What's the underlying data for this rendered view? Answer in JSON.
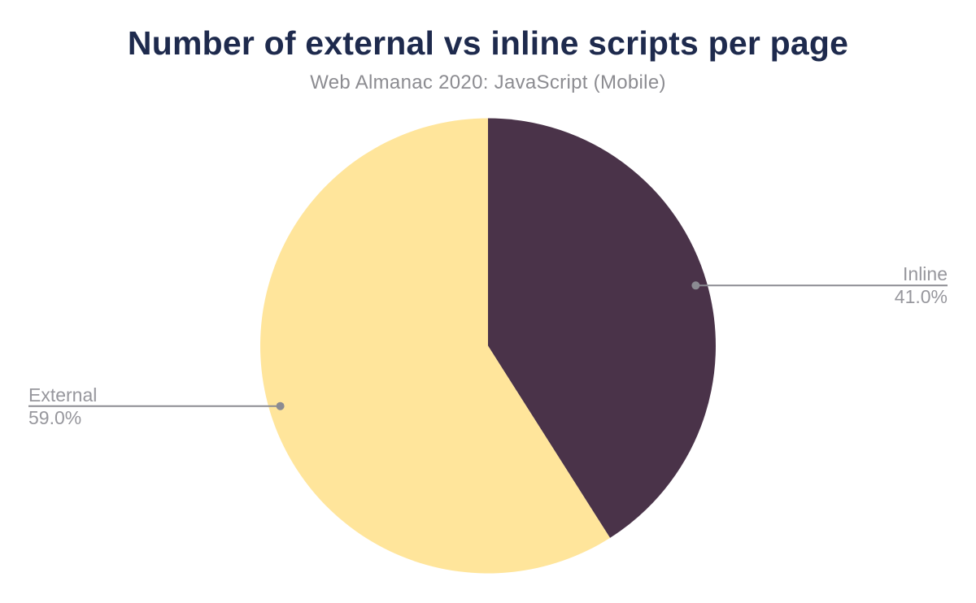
{
  "header": {
    "title": "Number of external vs inline scripts per page",
    "subtitle": "Web Almanac 2020: JavaScript (Mobile)"
  },
  "chart_data": {
    "type": "pie",
    "title": "Number of external vs inline scripts per page",
    "subtitle": "Web Almanac 2020: JavaScript (Mobile)",
    "unit": "%",
    "start_angle": "12 o'clock",
    "direction": "clockwise",
    "legend_position": "outside-callouts",
    "slices": [
      {
        "label": "Inline",
        "value": 41.0,
        "display": "41.0%",
        "color": "#4a3349",
        "label_side": "right"
      },
      {
        "label": "External",
        "value": 59.0,
        "display": "59.0%",
        "color": "#ffe59b",
        "label_side": "left"
      }
    ],
    "colors": {
      "title_text": "#1e2a4d",
      "subtitle_text": "#8c8c91",
      "callout_text": "#97979d",
      "callout_line": "#8b8b92",
      "background": "#ffffff"
    }
  }
}
